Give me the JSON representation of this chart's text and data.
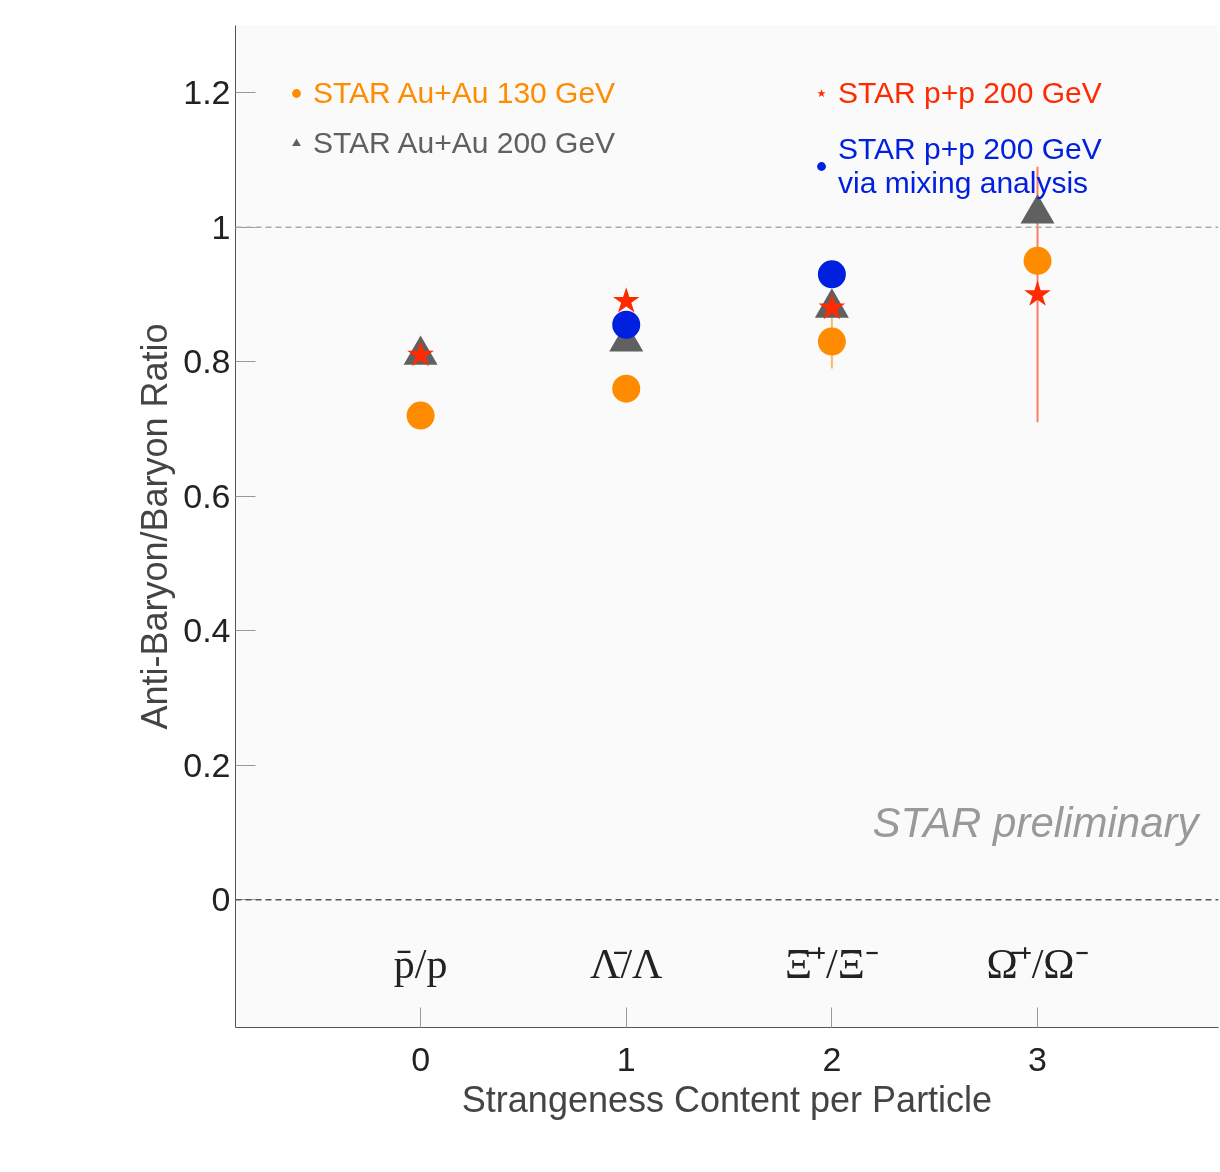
{
  "chart_data": {
    "type": "scatter",
    "xlabel": "Strangeness Content per Particle",
    "ylabel": "Anti-Baryon/Baryon Ratio",
    "x": [
      0,
      1,
      2,
      3
    ],
    "series": [
      {
        "name": "STAR Au+Au 130 GeV",
        "color": "#ff8c00",
        "marker": "circle",
        "values": [
          0.72,
          0.76,
          0.83,
          0.95
        ],
        "errors": [
          null,
          null,
          0.04,
          null
        ]
      },
      {
        "name": "STAR Au+Au 200 GeV",
        "color": "#606060",
        "marker": "triangle",
        "values": [
          0.81,
          0.83,
          0.88,
          1.02
        ]
      },
      {
        "name": "STAR p+p 200 GeV",
        "color": "#ff2a00",
        "marker": "star",
        "values": [
          0.81,
          0.89,
          0.88,
          0.9
        ],
        "errors": [
          null,
          null,
          null,
          0.19
        ]
      },
      {
        "name": "STAR p+p 200 GeV\nvia mixing analysis",
        "color": "#0020e0",
        "marker": "circle",
        "x": [
          1,
          2
        ],
        "values": [
          0.855,
          0.93
        ]
      }
    ],
    "xlim": [
      -0.9,
      3.88
    ],
    "ylim": [
      -0.19,
      1.3
    ],
    "xticks": [
      0,
      1,
      2,
      3
    ],
    "yticks": [
      0,
      0.2,
      0.4,
      0.6,
      0.8,
      1,
      1.2
    ],
    "ref_lines": [
      {
        "axis": "y",
        "value": 1,
        "color": "#aaaaaa",
        "line_style": "dashed"
      },
      {
        "axis": "y",
        "value": 0,
        "color": "#555555",
        "line_style": "dashed"
      }
    ],
    "annotations": [
      "p̄/p",
      "Λ̄/Λ",
      "Ξ̄⁺/Ξ⁻",
      "Ω̄⁺/Ω⁻",
      "STAR preliminary"
    ],
    "legend": "top",
    "grid": false
  }
}
